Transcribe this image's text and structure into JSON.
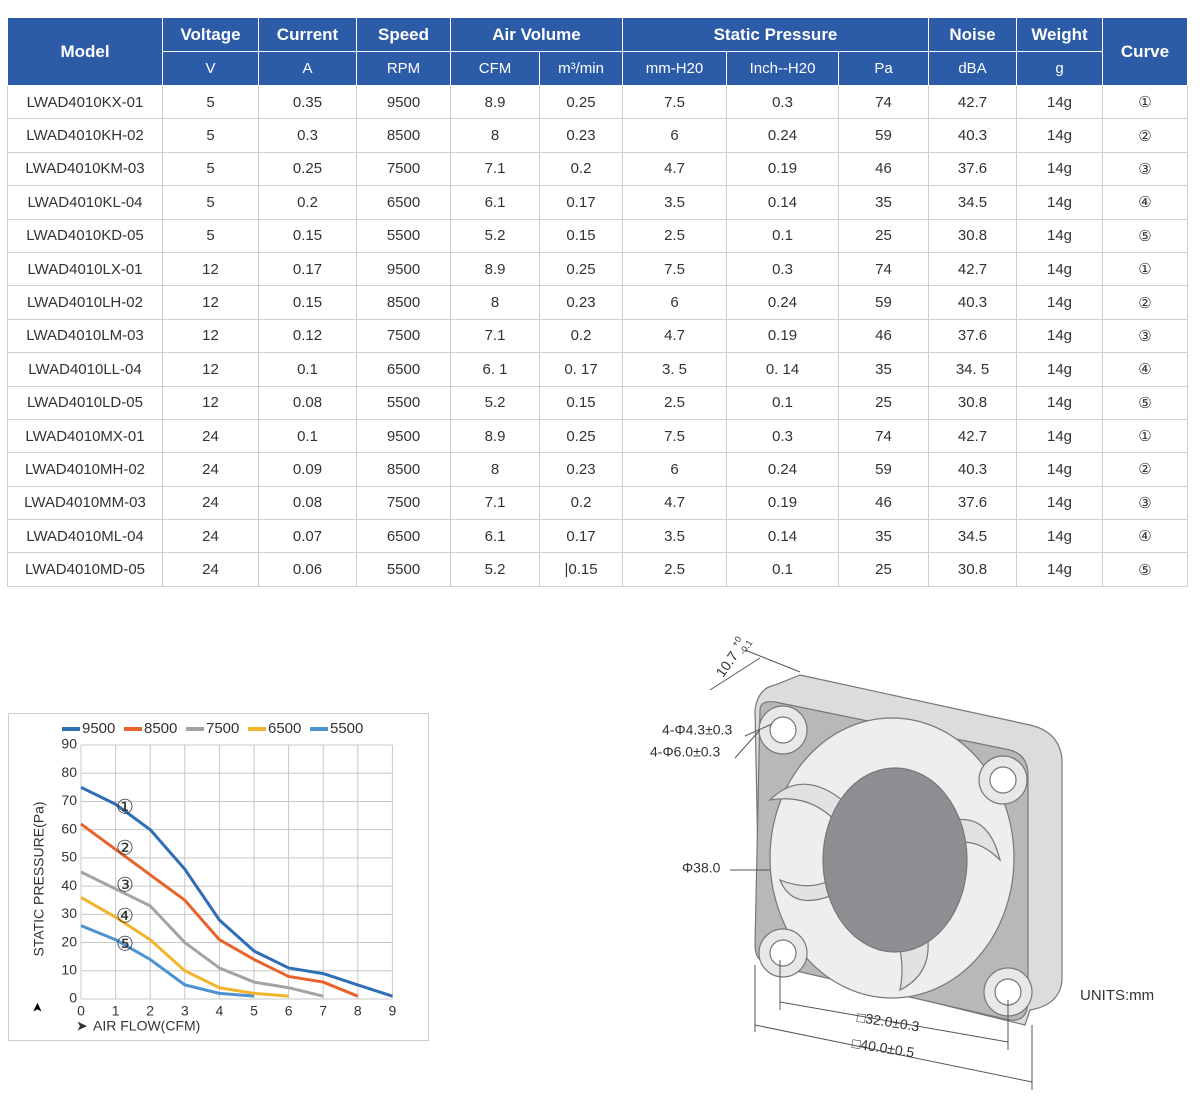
{
  "table": {
    "header": [
      "Model",
      "Voltage",
      "Current",
      "Speed",
      "Air Volume",
      "Static Pressure",
      "Noise",
      "Weight",
      "Curve"
    ],
    "units": [
      "V",
      "A",
      "RPM",
      "CFM",
      "m³/min",
      "mm-H20",
      "Inch--H20",
      "Pa",
      "dBA",
      "g"
    ],
    "rows": [
      [
        "LWAD4010KX-01",
        "5",
        "0.35",
        "9500",
        "8.9",
        "0.25",
        "7.5",
        "0.3",
        "74",
        "42.7",
        "14g",
        "①"
      ],
      [
        "LWAD4010KH-02",
        "5",
        "0.3",
        "8500",
        "8",
        "0.23",
        "6",
        "0.24",
        "59",
        "40.3",
        "14g",
        "②"
      ],
      [
        "LWAD4010KM-03",
        "5",
        "0.25",
        "7500",
        "7.1",
        "0.2",
        "4.7",
        "0.19",
        "46",
        "37.6",
        "14g",
        "③"
      ],
      [
        "LWAD4010KL-04",
        "5",
        "0.2",
        "6500",
        "6.1",
        "0.17",
        "3.5",
        "0.14",
        "35",
        "34.5",
        "14g",
        "④"
      ],
      [
        "LWAD4010KD-05",
        "5",
        "0.15",
        "5500",
        "5.2",
        "0.15",
        "2.5",
        "0.1",
        "25",
        "30.8",
        "14g",
        "⑤"
      ],
      [
        "LWAD4010LX-01",
        "12",
        "0.17",
        "9500",
        "8.9",
        "0.25",
        "7.5",
        "0.3",
        "74",
        "42.7",
        "14g",
        "①"
      ],
      [
        "LWAD4010LH-02",
        "12",
        "0.15",
        "8500",
        "8",
        "0.23",
        "6",
        "0.24",
        "59",
        "40.3",
        "14g",
        "②"
      ],
      [
        "LWAD4010LM-03",
        "12",
        "0.12",
        "7500",
        "7.1",
        "0.2",
        "4.7",
        "0.19",
        "46",
        "37.6",
        "14g",
        "③"
      ],
      [
        "LWAD4010LL-04",
        "12",
        "0.1",
        "6500",
        "6. 1",
        "0. 17",
        "3. 5",
        "0. 14",
        "35",
        "34. 5",
        "14g",
        "④"
      ],
      [
        "LWAD4010LD-05",
        "12",
        "0.08",
        "5500",
        "5.2",
        "0.15",
        "2.5",
        "0.1",
        "25",
        "30.8",
        "14g",
        "⑤"
      ],
      [
        "LWAD4010MX-01",
        "24",
        "0.1",
        "9500",
        "8.9",
        "0.25",
        "7.5",
        "0.3",
        "74",
        "42.7",
        "14g",
        "①"
      ],
      [
        "LWAD4010MH-02",
        "24",
        "0.09",
        "8500",
        "8",
        "0.23",
        "6",
        "0.24",
        "59",
        "40.3",
        "14g",
        "②"
      ],
      [
        "LWAD4010MM-03",
        "24",
        "0.08",
        "7500",
        "7.1",
        "0.2",
        "4.7",
        "0.19",
        "46",
        "37.6",
        "14g",
        "③"
      ],
      [
        "LWAD4010ML-04",
        "24",
        "0.07",
        "6500",
        "6.1",
        "0.17",
        "3.5",
        "0.14",
        "35",
        "34.5",
        "14g",
        "④"
      ],
      [
        "LWAD4010MD-05",
        "24",
        "0.06",
        "5500",
        "5.2",
        "|0.15",
        "2.5",
        "0.1",
        "25",
        "30.8",
        "14g",
        "⑤"
      ]
    ]
  },
  "chart_data": {
    "type": "line",
    "y_label": "STATIC PRESSURE(Pa)",
    "x_label": "AIR FLOW(CFM)",
    "x": [
      0,
      1,
      2,
      3,
      4,
      5,
      6,
      7,
      8,
      9
    ],
    "series": [
      {
        "name": "9500",
        "color": "#2f6db5",
        "values": [
          75,
          69,
          60,
          46,
          28,
          17,
          11,
          9,
          5,
          1
        ]
      },
      {
        "name": "8500",
        "color": "#e8632b",
        "values": [
          62,
          53,
          44,
          35,
          21,
          14,
          8,
          6,
          1,
          null
        ]
      },
      {
        "name": "7500",
        "color": "#a3a3a3",
        "values": [
          45,
          39,
          33,
          20,
          11,
          6,
          4,
          1,
          null,
          null
        ]
      },
      {
        "name": "6500",
        "color": "#f2b42c",
        "values": [
          36,
          29,
          21,
          10,
          4,
          2,
          1,
          null,
          null,
          null
        ]
      },
      {
        "name": "5500",
        "color": "#4d93d0",
        "values": [
          26,
          21,
          14,
          5,
          2,
          1,
          null,
          null,
          null,
          null
        ]
      }
    ],
    "annotations": [
      "①",
      "②",
      "③",
      "④",
      "⑤"
    ],
    "xlim": [
      0,
      9
    ],
    "ylim": [
      0,
      90
    ],
    "xticks": [
      0,
      1,
      2,
      3,
      4,
      5,
      6,
      7,
      8,
      9
    ],
    "yticks": [
      0,
      10,
      20,
      30,
      40,
      50,
      60,
      70,
      80,
      90
    ],
    "grid": true,
    "legend": "top"
  },
  "drawing": {
    "thickness": "10.7",
    "tol_upper": "+0",
    "tol_lower": "-0.1",
    "hole_inner": "4-Φ4.3±0.3",
    "hole_outer": "4-Φ6.0±0.3",
    "diameter": "Φ38.0",
    "hole_pitch": "□32.0±0.3",
    "frame": "□40.0±0.5",
    "units": "UNITS:mm"
  }
}
